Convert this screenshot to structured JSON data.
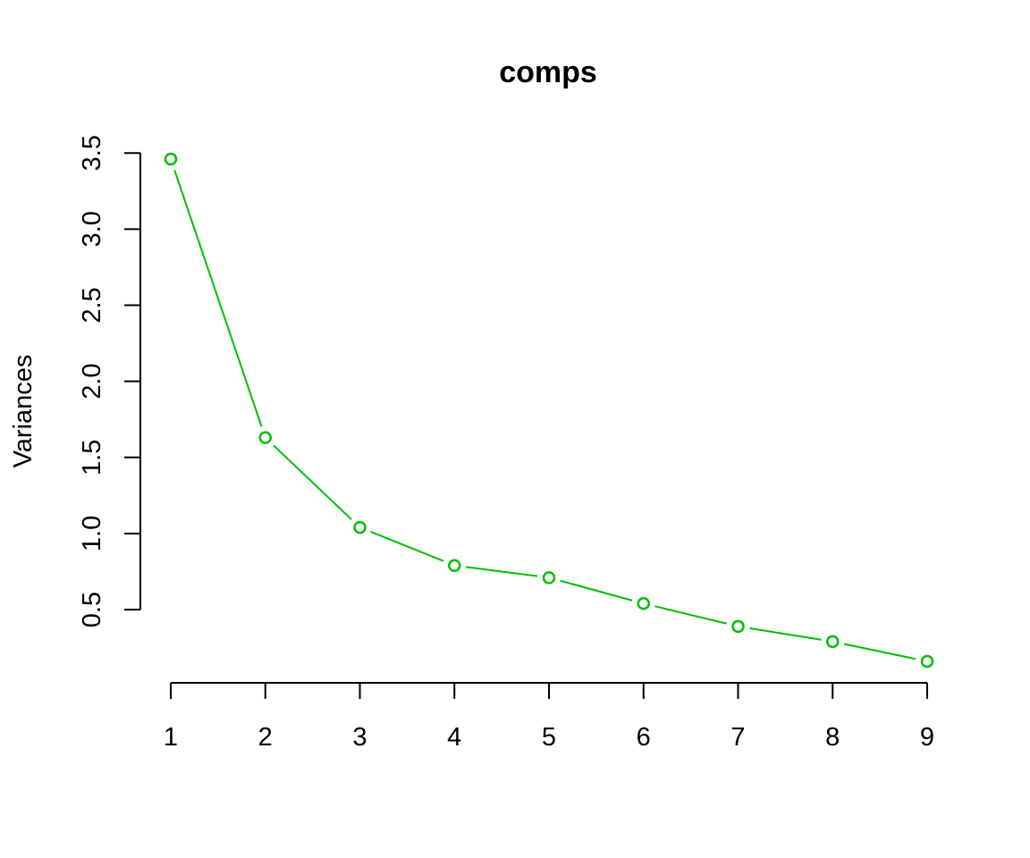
{
  "chart_data": {
    "type": "line",
    "title": "comps",
    "xlabel": "",
    "ylabel": "Variances",
    "x": [
      1,
      2,
      3,
      4,
      5,
      6,
      7,
      8,
      9
    ],
    "series": [
      {
        "values": [
          3.46,
          1.63,
          1.04,
          0.79,
          0.71,
          0.54,
          0.39,
          0.29,
          0.16
        ]
      }
    ],
    "x_ticks": [
      "1",
      "2",
      "3",
      "4",
      "5",
      "6",
      "7",
      "8",
      "9"
    ],
    "y_ticks": [
      "0.5",
      "1.0",
      "1.5",
      "2.0",
      "2.5",
      "3.0",
      "3.5"
    ],
    "y_tick_values": [
      0.5,
      1.0,
      1.5,
      2.0,
      2.5,
      3.0,
      3.5
    ],
    "xlim": [
      1,
      9
    ],
    "ylim": [
      0.16,
      3.46
    ],
    "grid": false,
    "legend": "none",
    "series_color": "#00BF00",
    "axis_color": "#000000"
  }
}
